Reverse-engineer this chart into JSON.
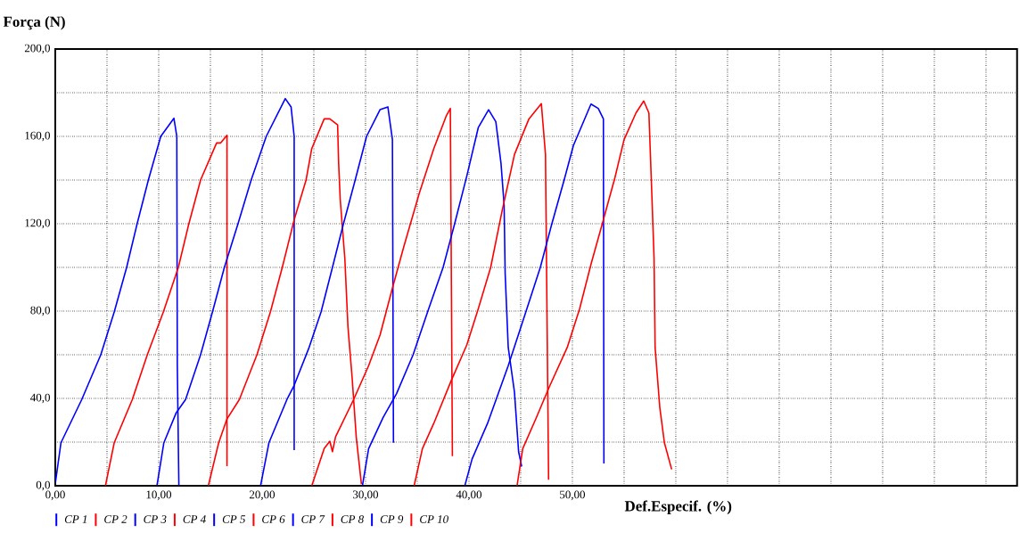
{
  "chart_data": {
    "type": "line",
    "xlabel": "Def.Especif. (%)",
    "ylabel": "Força (N)",
    "xlim": [
      0,
      93
    ],
    "ylim": [
      0,
      200
    ],
    "xticks": [
      {
        "value": 0,
        "label": "0,00"
      },
      {
        "value": 5,
        "label": null
      },
      {
        "value": 10,
        "label": "10,00"
      },
      {
        "value": 15,
        "label": null
      },
      {
        "value": 20,
        "label": "20,00"
      },
      {
        "value": 25,
        "label": null
      },
      {
        "value": 30,
        "label": "30,00"
      },
      {
        "value": 35,
        "label": null
      },
      {
        "value": 40,
        "label": "40,00"
      },
      {
        "value": 45,
        "label": null
      },
      {
        "value": 50,
        "label": "50,00"
      },
      {
        "value": 55,
        "label": null
      },
      {
        "value": 60,
        "label": null
      },
      {
        "value": 65,
        "label": null
      },
      {
        "value": 70,
        "label": null
      },
      {
        "value": 75,
        "label": null
      },
      {
        "value": 80,
        "label": null
      },
      {
        "value": 85,
        "label": null
      },
      {
        "value": 90,
        "label": null
      }
    ],
    "yticks": [
      {
        "value": 0,
        "label": "0,0"
      },
      {
        "value": 20,
        "label": null
      },
      {
        "value": 40,
        "label": "40,0"
      },
      {
        "value": 60,
        "label": null
      },
      {
        "value": 80,
        "label": "80,0"
      },
      {
        "value": 100,
        "label": null
      },
      {
        "value": 120,
        "label": "120,0"
      },
      {
        "value": 140,
        "label": null
      },
      {
        "value": 160,
        "label": "160,0"
      },
      {
        "value": 180,
        "label": null
      },
      {
        "value": 200,
        "label": "200,0"
      }
    ],
    "grid": true,
    "legend": "bottom",
    "marker": "none",
    "line_style": "solid",
    "series": [
      {
        "name": "CP 1",
        "color": "#0000ff",
        "x": [
          0,
          0.55,
          2.56,
          4.4,
          5.7,
          6.9,
          7.9,
          9.0,
          10.2,
          11.47,
          11.75,
          11.8,
          11.95
        ],
        "values": [
          1,
          19.7,
          39.5,
          60,
          79.6,
          100,
          119.7,
          140,
          160,
          168.3,
          160,
          55,
          0
        ]
      },
      {
        "name": "CP 2",
        "color": "#ff0000",
        "x": [
          4.85,
          5.7,
          7.45,
          8.9,
          10.45,
          11.9,
          12.9,
          14.05,
          15.6,
          16.0,
          16.6,
          16.6
        ],
        "values": [
          0,
          19.7,
          39.5,
          60,
          79.6,
          100,
          119.7,
          140,
          157,
          157,
          160.5,
          9
        ]
      },
      {
        "name": "CP 3",
        "color": "#0000ff",
        "x": [
          9.83,
          10.5,
          11.7,
          12.6,
          14.05,
          15.2,
          16.35,
          17.65,
          18.94,
          20.4,
          22.24,
          22.8,
          23.1,
          23.1
        ],
        "values": [
          0,
          19.7,
          33.5,
          39.5,
          60,
          79.6,
          100,
          119.7,
          140,
          160,
          177.3,
          173.5,
          160,
          16.3
        ]
      },
      {
        "name": "CP 4",
        "color": "#ff0000",
        "x": [
          14.8,
          15.8,
          16.6,
          17.8,
          19.5,
          20.8,
          21.95,
          23.1,
          24.25,
          24.8,
          26.0,
          26.55,
          27.3,
          27.4,
          27.55,
          28.0,
          28.3,
          28.7,
          29.1,
          29.6
        ],
        "values": [
          0,
          19.7,
          30.6,
          39.5,
          60,
          79.6,
          100,
          121.8,
          140,
          154.4,
          168,
          168,
          165.3,
          147.6,
          131.3,
          104,
          72.8,
          49.7,
          22.4,
          0.8
        ]
      },
      {
        "name": "CP 5",
        "color": "#0000ff",
        "x": [
          19.85,
          20.66,
          22.4,
          23.1,
          24.5,
          25.7,
          26.8,
          27.85,
          29.0,
          30.1,
          31.4,
          32.16,
          32.6,
          32.7
        ],
        "values": [
          0,
          19.7,
          39.5,
          46,
          62.8,
          79.6,
          100,
          119.7,
          140,
          160,
          172.2,
          173.5,
          158.5,
          19.7
        ]
      },
      {
        "name": "CP 6",
        "color": "#ff0000",
        "x": [
          24.8,
          26.0,
          26.55,
          26.8,
          27.1,
          28.85,
          30.3,
          31.4,
          32.6,
          33.7,
          35.2,
          36.6,
          37.8,
          38.2,
          38.4
        ],
        "values": [
          0,
          17,
          20.4,
          15.6,
          22.4,
          39.5,
          55,
          69,
          90.5,
          109.5,
          134,
          154.4,
          169.3,
          172.8,
          13.6
        ]
      },
      {
        "name": "CP 7",
        "color": "#0000ff",
        "x": [
          29.7,
          30.3,
          31.7,
          33.0,
          34.6,
          36.0,
          37.5,
          38.6,
          39.8,
          40.9,
          41.9,
          42.6,
          43.1,
          43.4,
          43.5,
          43.8,
          44.4,
          44.8,
          45.1
        ],
        "values": [
          0,
          17,
          31.3,
          42.2,
          60,
          79.6,
          100,
          119.7,
          142,
          164,
          172.2,
          166.7,
          147.6,
          128.6,
          97.3,
          63.3,
          42.9,
          15.6,
          8.8
        ]
      },
      {
        "name": "CP 8",
        "color": "#ff0000",
        "x": [
          34.7,
          35.5,
          36.6,
          38.3,
          39.8,
          40.9,
          42.1,
          43.2,
          44.4,
          45.8,
          47.0,
          47.4,
          47.7
        ],
        "values": [
          0,
          17,
          28.6,
          48.3,
          64.6,
          81,
          100,
          125.8,
          151.7,
          168,
          175,
          151.7,
          2.8
        ]
      },
      {
        "name": "CP 9",
        "color": "#0000ff",
        "x": [
          39.6,
          40.3,
          41.8,
          43.8,
          45.5,
          46.9,
          48.0,
          49.25,
          50.1,
          51.8,
          52.5,
          53.0,
          53.05
        ],
        "values": [
          0,
          12.2,
          28.6,
          55,
          79.6,
          100,
          119.7,
          140.8,
          155.8,
          174.8,
          172.8,
          168,
          10.2
        ]
      },
      {
        "name": "CP 10",
        "color": "#ff0000",
        "x": [
          44.65,
          45.2,
          46.5,
          47.8,
          49.5,
          50.7,
          51.8,
          53.0,
          54.1,
          55.0,
          56.15,
          56.9,
          57.4,
          57.7,
          57.9,
          58.0,
          58.45,
          58.9,
          59.6
        ],
        "values": [
          0,
          17,
          31,
          45.6,
          63.3,
          81,
          101.4,
          121.8,
          140.8,
          158.5,
          170.7,
          176.2,
          170.7,
          131.3,
          104,
          63.3,
          36,
          19.7,
          7.5
        ]
      }
    ]
  }
}
